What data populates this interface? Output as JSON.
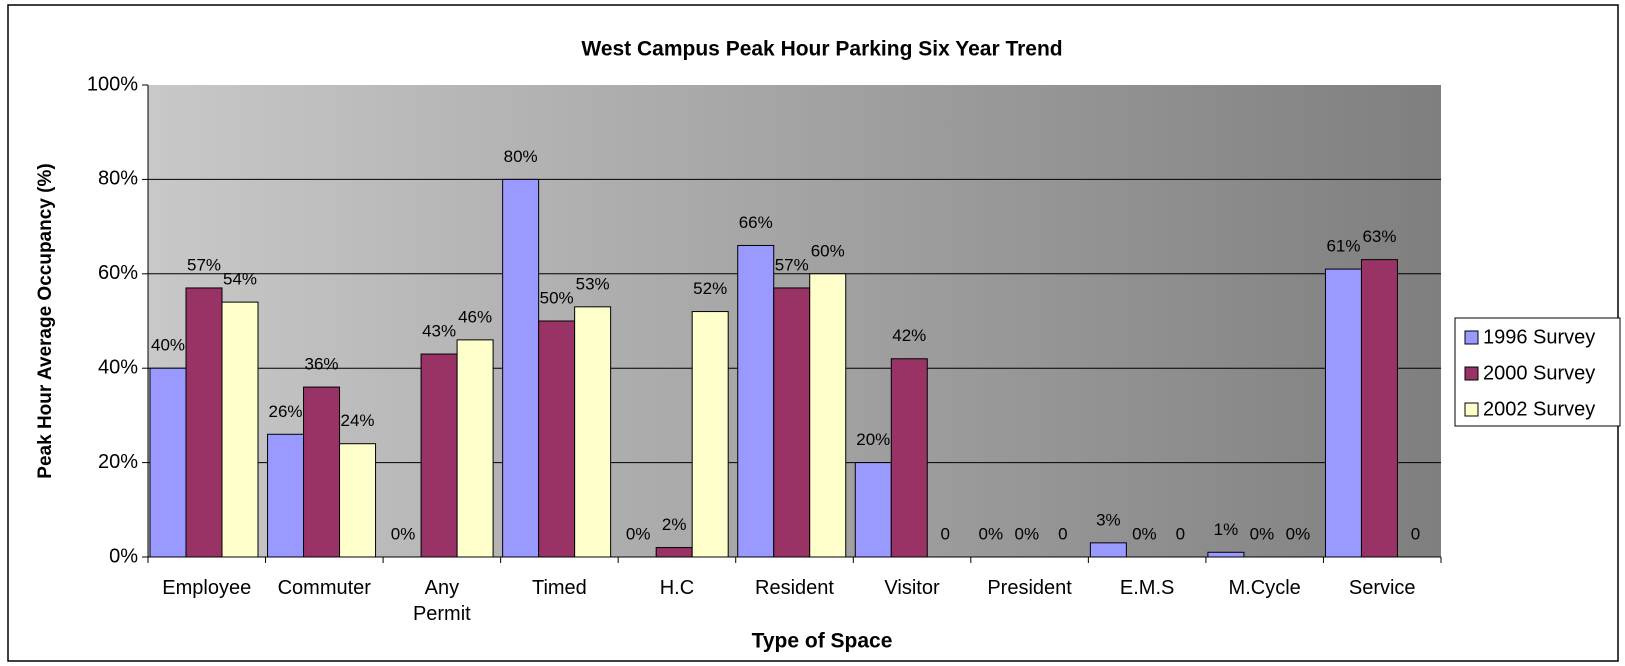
{
  "chart_data": {
    "type": "bar",
    "title": "West Campus Peak Hour Parking Six Year Trend",
    "x_label": "Type of Space",
    "y_label": "Peak Hour Average Occupancy (%)",
    "categories": [
      "Employee",
      "Commuter",
      "Any\nPermit",
      "Timed",
      "H.C",
      "Resident",
      "Visitor",
      "President",
      "E.M.S",
      "M.Cycle",
      "Service"
    ],
    "series": [
      {
        "name": "1996 Survey",
        "color": "#9999ff",
        "values": [
          40,
          26,
          0,
          80,
          0,
          66,
          20,
          0,
          3,
          1,
          61
        ],
        "value_labels": [
          "40%",
          "26%",
          "0%",
          "80%",
          "0%",
          "66%",
          "20%",
          "0%",
          "3%",
          "1%",
          "61%"
        ]
      },
      {
        "name": "2000 Survey",
        "color": "#993366",
        "values": [
          57,
          36,
          43,
          50,
          2,
          57,
          42,
          0,
          0,
          0,
          63
        ],
        "value_labels": [
          "57%",
          "36%",
          "43%",
          "50%",
          "2%",
          "57%",
          "42%",
          "0%",
          "0%",
          "0%",
          "63%"
        ]
      },
      {
        "name": "2002 Survey",
        "color": "#ffffcc",
        "values": [
          54,
          24,
          46,
          53,
          52,
          60,
          0,
          0,
          0,
          0,
          0
        ],
        "value_labels": [
          "54%",
          "24%",
          "46%",
          "53%",
          "52%",
          "60%",
          "0",
          "0",
          "0",
          "0%",
          "0"
        ]
      }
    ],
    "ylim": [
      0,
      100
    ],
    "yticks": [
      {
        "value": 0,
        "label": "0%"
      },
      {
        "value": 20,
        "label": "20%"
      },
      {
        "value": 40,
        "label": "40%"
      },
      {
        "value": 60,
        "label": "60%"
      },
      {
        "value": 80,
        "label": "80%"
      },
      {
        "value": 100,
        "label": "100%"
      }
    ],
    "grid": true,
    "legend": "right"
  }
}
